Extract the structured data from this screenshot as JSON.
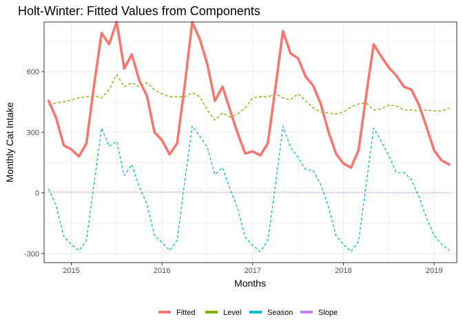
{
  "chart_data": {
    "type": "line",
    "title": "Holt-Winter: Fitted Values from Components",
    "xlabel": "Months",
    "ylabel": "Monthly Cat Intake",
    "x_start": "2014-10",
    "x_step": "month",
    "xlim": [
      2014.7,
      2019.25
    ],
    "ylim": [
      -345,
      845
    ],
    "x_ticks": [
      2015,
      2016,
      2017,
      2018,
      2019
    ],
    "x_tick_labels": [
      "2015",
      "2016",
      "2017",
      "2018",
      "2019"
    ],
    "y_ticks": [
      -300,
      0,
      300,
      600
    ],
    "y_tick_labels": [
      "-300",
      "0",
      "300",
      "600"
    ],
    "grid": true,
    "legend_position": "bottom",
    "series": [
      {
        "name": "Fitted",
        "color": "#F8766D",
        "style": "solid",
        "values": [
          455,
          370,
          235,
          215,
          180,
          245,
          530,
          790,
          735,
          845,
          615,
          685,
          555,
          480,
          300,
          260,
          190,
          245,
          530,
          845,
          760,
          635,
          455,
          525,
          410,
          295,
          195,
          205,
          185,
          245,
          520,
          800,
          690,
          665,
          575,
          530,
          440,
          305,
          195,
          145,
          125,
          210,
          480,
          735,
          675,
          620,
          580,
          525,
          510,
          435,
          325,
          210,
          160,
          140
        ]
      },
      {
        "name": "Level",
        "color": "#7CAE00",
        "style": "dashed",
        "values": [
          435,
          445,
          450,
          460,
          470,
          475,
          480,
          470,
          510,
          585,
          525,
          545,
          525,
          545,
          510,
          490,
          475,
          475,
          475,
          495,
          475,
          410,
          360,
          395,
          375,
          390,
          420,
          470,
          475,
          475,
          490,
          470,
          460,
          490,
          455,
          420,
          400,
          395,
          390,
          400,
          425,
          440,
          445,
          410,
          415,
          435,
          430,
          410,
          410,
          405,
          410,
          405,
          405,
          420
        ]
      },
      {
        "name": "Season",
        "color": "#00BFC4",
        "style": "dashed",
        "values": [
          20,
          -65,
          -215,
          -255,
          -285,
          -235,
          45,
          320,
          230,
          255,
          85,
          140,
          30,
          -55,
          -210,
          -245,
          -285,
          -235,
          55,
          330,
          280,
          225,
          90,
          125,
          20,
          -75,
          -220,
          -260,
          -290,
          -235,
          35,
          330,
          225,
          175,
          115,
          110,
          40,
          -65,
          -210,
          -255,
          -290,
          -240,
          40,
          320,
          255,
          185,
          100,
          100,
          65,
          -20,
          -125,
          -210,
          -255,
          -285
        ]
      },
      {
        "name": "Slope",
        "color": "#C77CFF",
        "style": "dotted",
        "values": [
          5,
          5,
          5,
          5,
          5,
          5,
          5,
          5,
          5,
          5,
          5,
          4,
          4,
          4,
          4,
          4,
          4,
          4,
          4,
          4,
          4,
          3,
          3,
          3,
          3,
          3,
          3,
          3,
          3,
          3,
          3,
          3,
          3,
          2,
          2,
          2,
          2,
          2,
          2,
          2,
          2,
          2,
          2,
          2,
          2,
          1,
          1,
          1,
          1,
          1,
          1,
          1,
          1,
          1
        ]
      }
    ]
  }
}
